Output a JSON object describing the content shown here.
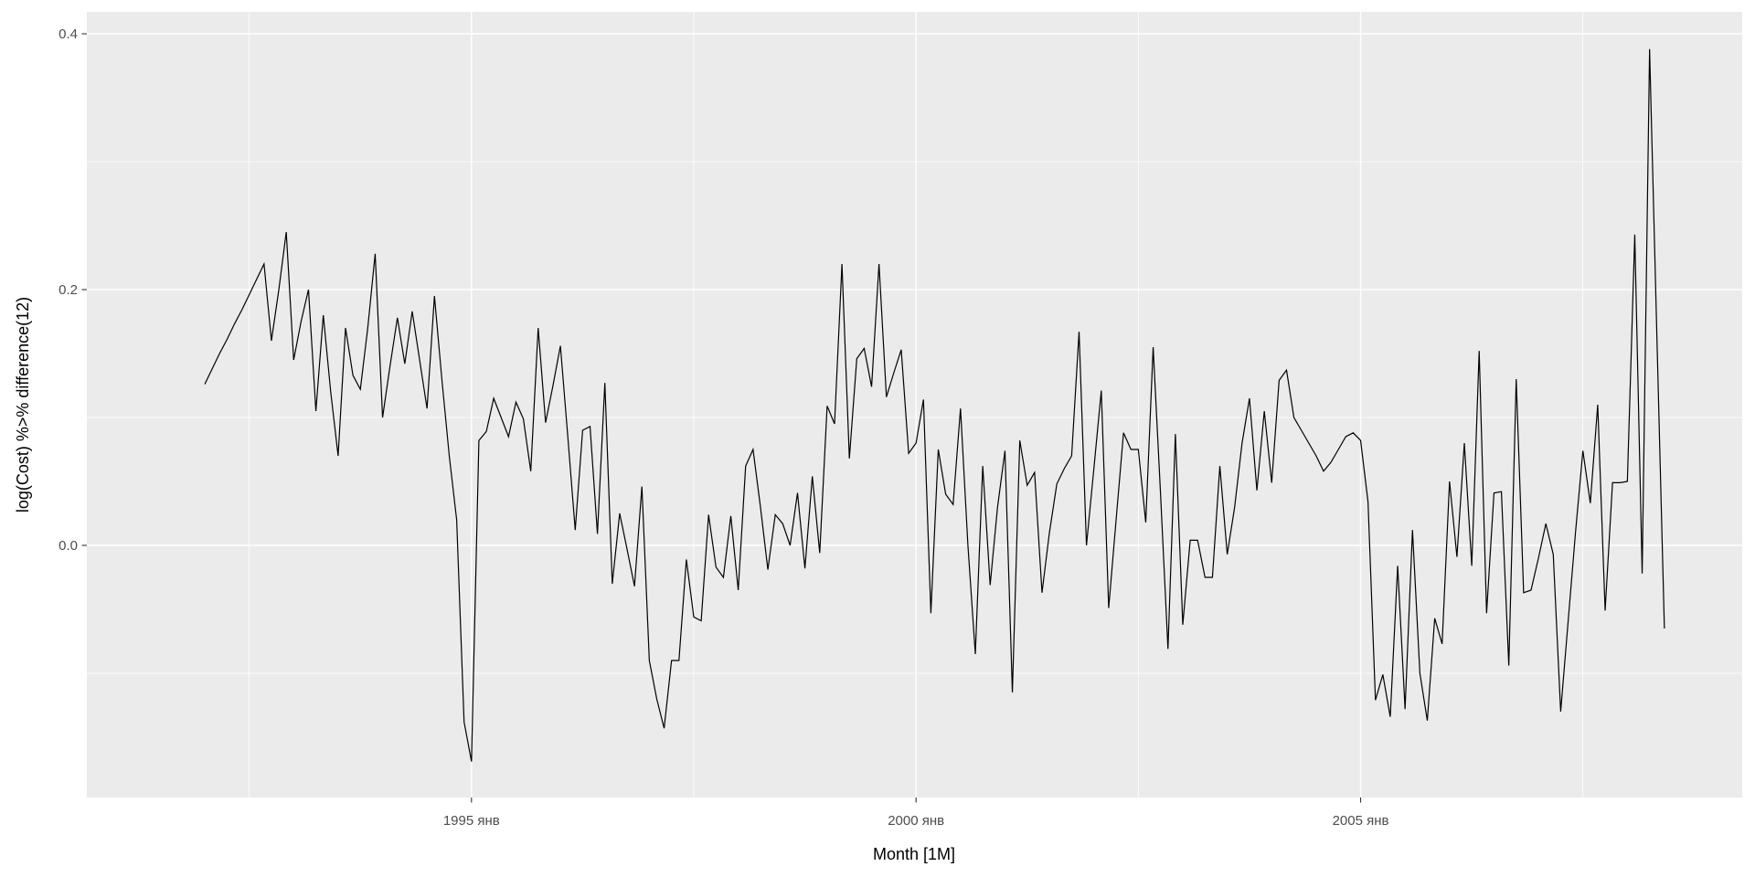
{
  "chart_data": {
    "type": "line",
    "title": "",
    "xlabel": "Month [1M]",
    "ylabel": "log(Cost) %>% difference(12)",
    "legend": "none",
    "grid": "on",
    "x_axis": {
      "frequency": "monthly",
      "period_start_month_index": 0,
      "major_ticks": [
        {
          "label": "1995 янв",
          "month_index": 36
        },
        {
          "label": "2000 янв",
          "month_index": 96
        },
        {
          "label": "2005 янв",
          "month_index": 156
        }
      ],
      "minor_gridline_month_indices": [
        6,
        66,
        126,
        186
      ]
    },
    "y_axis": {
      "major_ticks": [
        {
          "label": "0.4",
          "value": 0.4
        },
        {
          "label": "0.2",
          "value": 0.2
        },
        {
          "label": "0.0",
          "value": 0.0
        }
      ],
      "minor_gridline_values": [
        0.3,
        0.1,
        -0.1
      ],
      "range": [
        -0.197,
        0.417
      ]
    },
    "series": [
      {
        "name": "log(Cost) difference(12)",
        "values": [
          0.126,
          0.138,
          0.15,
          0.161,
          0.173,
          0.184,
          0.196,
          0.208,
          0.22,
          0.16,
          0.2,
          0.245,
          0.145,
          0.175,
          0.2,
          0.105,
          0.18,
          0.12,
          0.07,
          0.17,
          0.133,
          0.122,
          0.17,
          0.228,
          0.1,
          0.14,
          0.178,
          0.142,
          0.183,
          0.145,
          0.107,
          0.195,
          0.13,
          0.07,
          0.02,
          -0.138,
          -0.169,
          0.082,
          0.089,
          0.115,
          0.1,
          0.085,
          0.112,
          0.099,
          0.058,
          0.17,
          0.096,
          0.125,
          0.156,
          0.085,
          0.012,
          0.09,
          0.093,
          0.009,
          0.127,
          -0.03,
          0.025,
          -0.003,
          -0.032,
          0.046,
          -0.09,
          -0.12,
          -0.143,
          -0.09,
          -0.09,
          -0.011,
          -0.056,
          -0.059,
          0.024,
          -0.017,
          -0.025,
          0.023,
          -0.035,
          0.062,
          0.075,
          0.03,
          -0.019,
          0.024,
          0.017,
          0.0,
          0.041,
          -0.018,
          0.054,
          -0.006,
          0.109,
          0.095,
          0.22,
          0.068,
          0.146,
          0.154,
          0.124,
          0.22,
          0.116,
          0.135,
          0.153,
          0.072,
          0.08,
          0.114,
          -0.053,
          0.075,
          0.04,
          0.032,
          0.107,
          0.0,
          -0.085,
          0.062,
          -0.031,
          0.03,
          0.074,
          -0.115,
          0.082,
          0.047,
          0.057,
          -0.037,
          0.01,
          0.048,
          0.06,
          0.07,
          0.167,
          0.0,
          0.06,
          0.121,
          -0.049,
          0.02,
          0.088,
          0.075,
          0.075,
          0.018,
          0.155,
          0.04,
          -0.081,
          0.087,
          -0.062,
          0.004,
          0.004,
          -0.025,
          -0.025,
          0.062,
          -0.007,
          0.03,
          0.08,
          0.115,
          0.043,
          0.105,
          0.049,
          0.129,
          0.137,
          0.1,
          0.09,
          0.08,
          0.07,
          0.058,
          0.065,
          0.075,
          0.085,
          0.088,
          0.082,
          0.034,
          -0.121,
          -0.101,
          -0.134,
          -0.016,
          -0.128,
          0.012,
          -0.1,
          -0.137,
          -0.057,
          -0.077,
          0.05,
          -0.009,
          0.08,
          -0.016,
          0.152,
          -0.053,
          0.041,
          0.042,
          -0.094,
          0.13,
          -0.037,
          -0.035,
          -0.01,
          0.017,
          -0.007,
          -0.13,
          -0.06,
          0.01,
          0.074,
          0.033,
          0.11,
          -0.051,
          0.049,
          0.049,
          0.05,
          0.243,
          -0.022,
          0.388,
          0.16,
          -0.065
        ]
      }
    ],
    "style": {
      "page_bg": "#ffffff",
      "panel_bg": "#ebebeb",
      "grid_color": "#ffffff",
      "line_color": "#000000",
      "axis_text_color": "#4d4d4d",
      "axis_title_color": "#000000",
      "tick_color": "#333333"
    }
  }
}
